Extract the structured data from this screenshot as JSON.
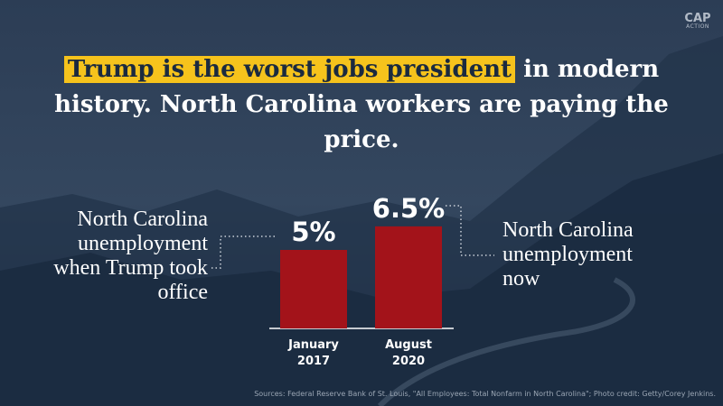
{
  "chart_data": {
    "type": "bar",
    "title_parts": [
      "Trump is the worst jobs president",
      "in modern history. North Carolina workers are paying the price."
    ],
    "categories": [
      "January 2017",
      "August 2020"
    ],
    "values": [
      5,
      6.5
    ],
    "value_labels": [
      "5%",
      "6.5%"
    ],
    "color": "#a3131a",
    "annotations": [
      "North Carolina unemployment when Trump took office",
      "North Carolina unemployment now"
    ],
    "source": "Sources: Federal Reserve Bank of St. Louis, \"All Employees: Total Nonfarm in North Carolina\"; Photo credit: Getty/Corey Jenkins.",
    "logo": [
      "CAP",
      "ACTION"
    ]
  }
}
